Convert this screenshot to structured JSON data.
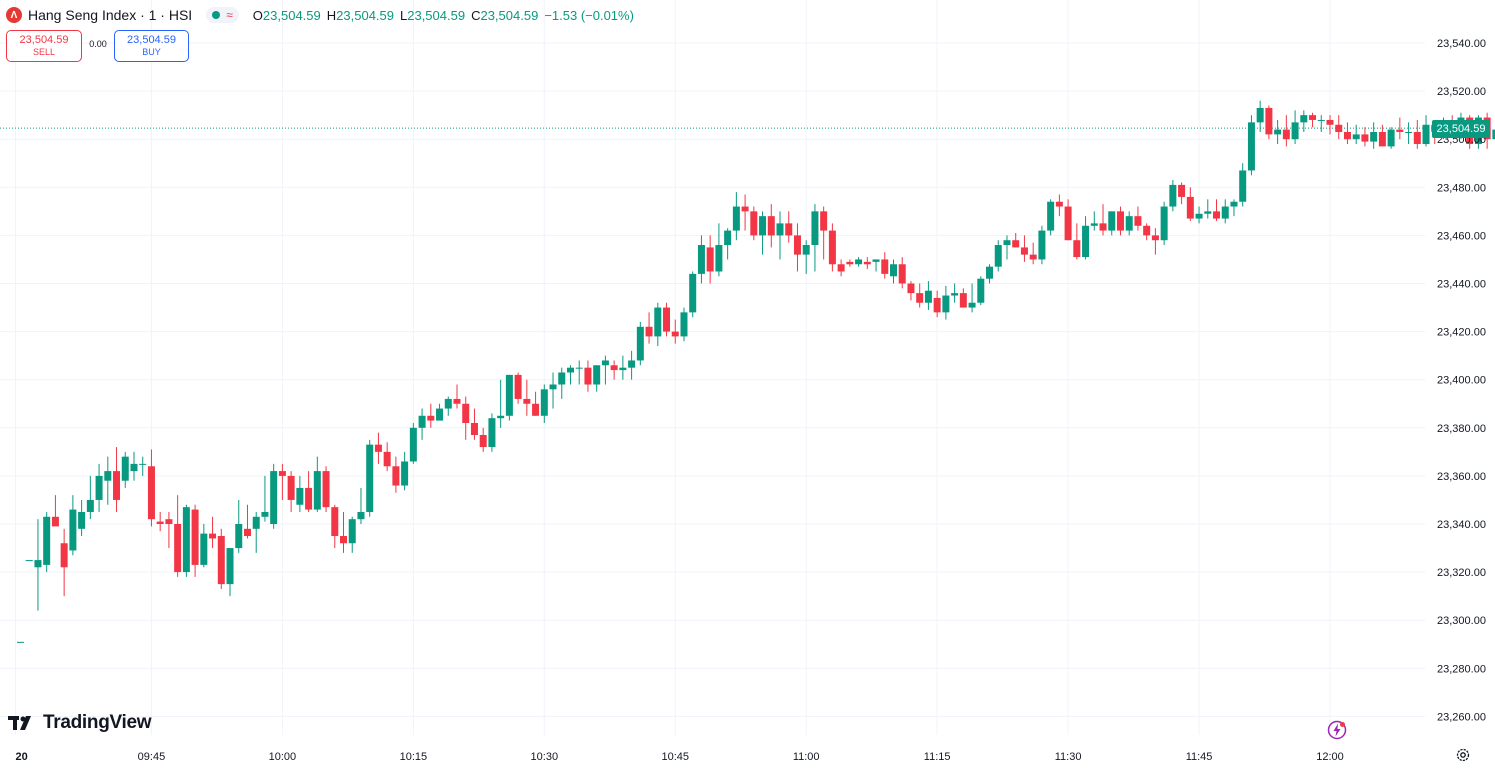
{
  "header": {
    "logo_letter": "Λ",
    "title": "Hang Seng Index · 1 · HSI",
    "wave_symbol": "≈",
    "ohlc": {
      "o_label": "O",
      "o": "23,504.59",
      "h_label": "H",
      "h": "23,504.59",
      "l_label": "L",
      "l": "23,504.59",
      "c_label": "C",
      "c": "23,504.59",
      "change": "−1.53 (−0.01%)"
    }
  },
  "trade": {
    "sell_price": "23,504.59",
    "sell_label": "SELL",
    "spread": "0.00",
    "buy_price": "23,504.59",
    "buy_label": "BUY"
  },
  "last_price_badge": "23,504.59",
  "branding": {
    "name": "TradingView"
  },
  "colors": {
    "up": "#089981",
    "down": "#f23645",
    "grid": "#f0f3fa",
    "axis_text": "#131722"
  },
  "chart_data": {
    "type": "candlestick",
    "title": "Hang Seng Index · 1 · HSI",
    "interval": "1 minute",
    "ylim": [
      23250,
      23550
    ],
    "yticks": [
      23260,
      23280,
      23300,
      23320,
      23340,
      23360,
      23380,
      23400,
      23420,
      23440,
      23460,
      23480,
      23500,
      23520,
      23540
    ],
    "ytick_labels": [
      "23,260.00",
      "23,280.00",
      "23,300.00",
      "23,320.00",
      "23,340.00",
      "23,360.00",
      "23,380.00",
      "23,400.00",
      "23,420.00",
      "23,440.00",
      "23,460.00",
      "23,480.00",
      "23,500.00",
      "23,520.00",
      "23,540.00"
    ],
    "xticks": [
      {
        "bar": 0,
        "label": "20"
      },
      {
        "bar": 15,
        "label": "09:45"
      },
      {
        "bar": 30,
        "label": "10:00"
      },
      {
        "bar": 45,
        "label": "10:15"
      },
      {
        "bar": 60,
        "label": "10:30"
      },
      {
        "bar": 75,
        "label": "10:45"
      },
      {
        "bar": 90,
        "label": "11:00"
      },
      {
        "bar": 105,
        "label": "11:15"
      },
      {
        "bar": 120,
        "label": "11:30"
      },
      {
        "bar": 135,
        "label": "11:45"
      },
      {
        "bar": 150,
        "label": "12:00"
      }
    ],
    "last_price": 23504.59,
    "ohlc": [
      [
        23291,
        23291,
        23291,
        23291
      ],
      [
        23325,
        23325,
        23325,
        23325
      ],
      [
        23322,
        23342,
        23304,
        23325
      ],
      [
        23323,
        23345,
        23320,
        23343
      ],
      [
        23343,
        23352,
        23340,
        23339
      ],
      [
        23332,
        23338,
        23310,
        23322
      ],
      [
        23329,
        23352,
        23327,
        23346
      ],
      [
        23338,
        23350,
        23335,
        23345
      ],
      [
        23345,
        23360,
        23342,
        23350
      ],
      [
        23350,
        23365,
        23345,
        23360
      ],
      [
        23358,
        23368,
        23348,
        23362
      ],
      [
        23362,
        23372,
        23345,
        23350
      ],
      [
        23358,
        23370,
        23355,
        23368
      ],
      [
        23362,
        23370,
        23358,
        23365
      ],
      [
        23365,
        23368,
        23360,
        23365
      ],
      [
        23364,
        23371,
        23339,
        23342
      ],
      [
        23341,
        23345,
        23337,
        23340
      ],
      [
        23342,
        23345,
        23330,
        23340
      ],
      [
        23340,
        23352,
        23318,
        23320
      ],
      [
        23320,
        23348,
        23318,
        23347
      ],
      [
        23346,
        23348,
        23318,
        23323
      ],
      [
        23323,
        23340,
        23322,
        23336
      ],
      [
        23336,
        23343,
        23330,
        23334
      ],
      [
        23335,
        23338,
        23313,
        23315
      ],
      [
        23315,
        23330,
        23310,
        23330
      ],
      [
        23330,
        23350,
        23328,
        23340
      ],
      [
        23338,
        23348,
        23334,
        23335
      ],
      [
        23338,
        23345,
        23328,
        23343
      ],
      [
        23343,
        23360,
        23341,
        23345
      ],
      [
        23340,
        23365,
        23338,
        23362
      ],
      [
        23362,
        23365,
        23350,
        23360
      ],
      [
        23360,
        23362,
        23345,
        23350
      ],
      [
        23348,
        23360,
        23345,
        23355
      ],
      [
        23355,
        23362,
        23345,
        23346
      ],
      [
        23346,
        23368,
        23345,
        23362
      ],
      [
        23362,
        23364,
        23345,
        23347
      ],
      [
        23347,
        23348,
        23330,
        23335
      ],
      [
        23335,
        23345,
        23328,
        23332
      ],
      [
        23332,
        23343,
        23328,
        23342
      ],
      [
        23342,
        23355,
        23340,
        23345
      ],
      [
        23345,
        23375,
        23343,
        23373
      ],
      [
        23373,
        23378,
        23365,
        23370
      ],
      [
        23370,
        23374,
        23362,
        23364
      ],
      [
        23364,
        23368,
        23353,
        23356
      ],
      [
        23356,
        23370,
        23354,
        23366
      ],
      [
        23366,
        23382,
        23365,
        23380
      ],
      [
        23380,
        23388,
        23375,
        23385
      ],
      [
        23385,
        23390,
        23380,
        23383
      ],
      [
        23383,
        23390,
        23386,
        23388
      ],
      [
        23388,
        23393,
        23385,
        23392
      ],
      [
        23392,
        23398,
        23388,
        23390
      ],
      [
        23390,
        23393,
        23375,
        23382
      ],
      [
        23382,
        23388,
        23375,
        23377
      ],
      [
        23377,
        23380,
        23370,
        23372
      ],
      [
        23372,
        23386,
        23370,
        23384
      ],
      [
        23384,
        23400,
        23380,
        23385
      ],
      [
        23385,
        23402,
        23383,
        23402
      ],
      [
        23402,
        23403,
        23390,
        23392
      ],
      [
        23392,
        23400,
        23385,
        23390
      ],
      [
        23390,
        23395,
        23385,
        23385
      ],
      [
        23385,
        23398,
        23382,
        23396
      ],
      [
        23396,
        23403,
        23388,
        23398
      ],
      [
        23398,
        23405,
        23392,
        23403
      ],
      [
        23403,
        23406,
        23398,
        23405
      ],
      [
        23405,
        23408,
        23398,
        23405
      ],
      [
        23405,
        23408,
        23395,
        23398
      ],
      [
        23398,
        23406,
        23395,
        23406
      ],
      [
        23406,
        23410,
        23398,
        23408
      ],
      [
        23406,
        23408,
        23400,
        23404
      ],
      [
        23404,
        23410,
        23400,
        23405
      ],
      [
        23405,
        23412,
        23400,
        23408
      ],
      [
        23408,
        23424,
        23406,
        23422
      ],
      [
        23422,
        23428,
        23415,
        23418
      ],
      [
        23418,
        23432,
        23414,
        23430
      ],
      [
        23430,
        23432,
        23418,
        23420
      ],
      [
        23420,
        23425,
        23415,
        23418
      ],
      [
        23418,
        23430,
        23416,
        23428
      ],
      [
        23428,
        23445,
        23426,
        23444
      ],
      [
        23444,
        23460,
        23440,
        23456
      ],
      [
        23455,
        23460,
        23440,
        23445
      ],
      [
        23445,
        23465,
        23443,
        23456
      ],
      [
        23456,
        23463,
        23450,
        23462
      ],
      [
        23462,
        23478,
        23458,
        23472
      ],
      [
        23472,
        23477,
        23462,
        23470
      ],
      [
        23470,
        23472,
        23458,
        23460
      ],
      [
        23460,
        23470,
        23452,
        23468
      ],
      [
        23468,
        23473,
        23455,
        23460
      ],
      [
        23460,
        23470,
        23450,
        23465
      ],
      [
        23465,
        23470,
        23457,
        23460
      ],
      [
        23460,
        23465,
        23445,
        23452
      ],
      [
        23452,
        23458,
        23444,
        23456
      ],
      [
        23456,
        23473,
        23445,
        23470
      ],
      [
        23470,
        23472,
        23450,
        23462
      ],
      [
        23462,
        23465,
        23445,
        23448
      ],
      [
        23448,
        23450,
        23443,
        23445
      ],
      [
        23449,
        23450,
        23447,
        23448
      ],
      [
        23448,
        23451,
        23447,
        23450
      ],
      [
        23449,
        23451,
        23446,
        23448
      ],
      [
        23449,
        23450,
        23445,
        23450
      ],
      [
        23450,
        23453,
        23442,
        23444
      ],
      [
        23443,
        23450,
        23440,
        23448
      ],
      [
        23448,
        23451,
        23438,
        23440
      ],
      [
        23440,
        23441,
        23433,
        23436
      ],
      [
        23436,
        23440,
        23430,
        23432
      ],
      [
        23432,
        23441,
        23429,
        23437
      ],
      [
        23434,
        23437,
        23426,
        23428
      ],
      [
        23428,
        23439,
        23425,
        23435
      ],
      [
        23435,
        23440,
        23432,
        23436
      ],
      [
        23436,
        23438,
        23430,
        23430
      ],
      [
        23430,
        23440,
        23428,
        23432
      ],
      [
        23432,
        23443,
        23431,
        23442
      ],
      [
        23442,
        23448,
        23440,
        23447
      ],
      [
        23447,
        23458,
        23445,
        23456
      ],
      [
        23456,
        23460,
        23450,
        23458
      ],
      [
        23458,
        23461,
        23455,
        23455
      ],
      [
        23455,
        23460,
        23449,
        23452
      ],
      [
        23452,
        23457,
        23448,
        23450
      ],
      [
        23450,
        23464,
        23448,
        23462
      ],
      [
        23462,
        23475,
        23460,
        23474
      ],
      [
        23474,
        23477,
        23468,
        23472
      ],
      [
        23472,
        23475,
        23458,
        23458
      ],
      [
        23458,
        23465,
        23450,
        23451
      ],
      [
        23451,
        23468,
        23450,
        23464
      ],
      [
        23464,
        23470,
        23462,
        23465
      ],
      [
        23465,
        23473,
        23460,
        23462
      ],
      [
        23462,
        23470,
        23460,
        23470
      ],
      [
        23470,
        23472,
        23460,
        23462
      ],
      [
        23462,
        23470,
        23460,
        23468
      ],
      [
        23468,
        23472,
        23462,
        23464
      ],
      [
        23464,
        23465,
        23458,
        23460
      ],
      [
        23460,
        23463,
        23452,
        23458
      ],
      [
        23458,
        23474,
        23456,
        23472
      ],
      [
        23472,
        23483,
        23470,
        23481
      ],
      [
        23481,
        23482,
        23473,
        23476
      ],
      [
        23476,
        23480,
        23466,
        23467
      ],
      [
        23467,
        23472,
        23465,
        23469
      ],
      [
        23469,
        23475,
        23467,
        23470
      ],
      [
        23470,
        23475,
        23466,
        23467
      ],
      [
        23467,
        23475,
        23465,
        23472
      ],
      [
        23472,
        23475,
        23468,
        23474
      ],
      [
        23474,
        23490,
        23472,
        23487
      ],
      [
        23487,
        23510,
        23485,
        23507
      ],
      [
        23507,
        23516,
        23503,
        23513
      ],
      [
        23513,
        23514,
        23500,
        23502
      ],
      [
        23502,
        23508,
        23498,
        23504
      ],
      [
        23504,
        23510,
        23497,
        23500
      ],
      [
        23500,
        23512,
        23498,
        23507
      ],
      [
        23507,
        23512,
        23503,
        23510
      ],
      [
        23510,
        23511,
        23505,
        23508
      ],
      [
        23508,
        23510,
        23503,
        23508
      ],
      [
        23508,
        23510,
        23502,
        23506
      ],
      [
        23506,
        23510,
        23500,
        23503
      ],
      [
        23503,
        23507,
        23498,
        23500
      ],
      [
        23500,
        23506,
        23498,
        23502
      ],
      [
        23502,
        23505,
        23497,
        23499
      ],
      [
        23499,
        23507,
        23496,
        23503
      ],
      [
        23503,
        23506,
        23498,
        23497
      ],
      [
        23497,
        23505,
        23496,
        23504
      ],
      [
        23504,
        23509,
        23500,
        23503
      ],
      [
        23503,
        23507,
        23498,
        23503
      ],
      [
        23503,
        23508,
        23496,
        23498
      ],
      [
        23498,
        23510,
        23497,
        23506
      ],
      [
        23506,
        23507,
        23498,
        23503
      ],
      [
        23503,
        23509,
        23500,
        23507
      ],
      [
        23507,
        23510,
        23503,
        23505
      ],
      [
        23505,
        23511,
        23500,
        23509
      ],
      [
        23509,
        23510,
        23496,
        23498
      ],
      [
        23498,
        23510,
        23496,
        23509
      ],
      [
        23509,
        23511,
        23496,
        23500
      ],
      [
        23500,
        23506,
        23496,
        23504
      ]
    ]
  }
}
